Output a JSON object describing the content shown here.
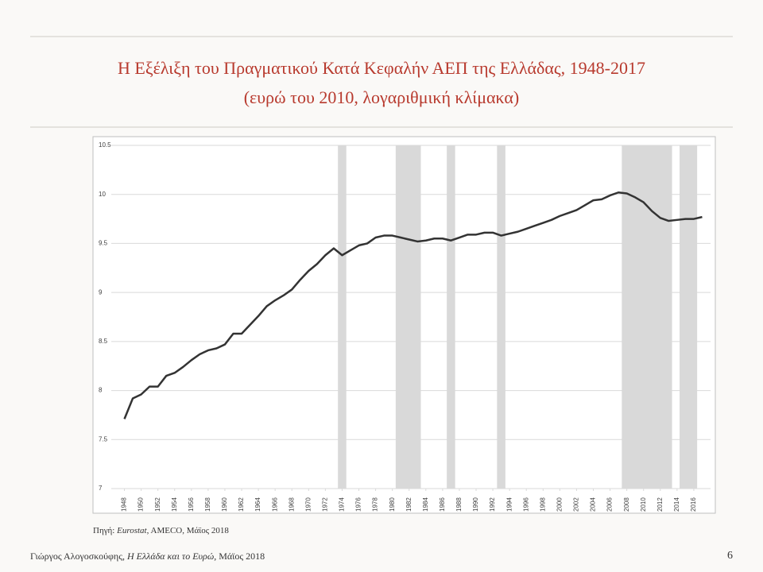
{
  "chart_data": {
    "type": "line",
    "title": "Η Εξέλιξη του Πραγματικού Κατά Κεφαλήν ΑΕΠ της Ελλάδας, 1948-2017",
    "subtitle": "(ευρώ του 2010, λογαριθμική κλίμακα)",
    "x": [
      1948,
      1949,
      1950,
      1951,
      1952,
      1953,
      1954,
      1955,
      1956,
      1957,
      1958,
      1959,
      1960,
      1961,
      1962,
      1963,
      1964,
      1965,
      1966,
      1967,
      1968,
      1969,
      1970,
      1971,
      1972,
      1973,
      1974,
      1975,
      1976,
      1977,
      1978,
      1979,
      1980,
      1981,
      1982,
      1983,
      1984,
      1985,
      1986,
      1987,
      1988,
      1989,
      1990,
      1991,
      1992,
      1993,
      1994,
      1995,
      1996,
      1997,
      1998,
      1999,
      2000,
      2001,
      2002,
      2003,
      2004,
      2005,
      2006,
      2007,
      2008,
      2009,
      2010,
      2011,
      2012,
      2013,
      2014,
      2015,
      2016,
      2017
    ],
    "series": [
      {
        "color": "#333333",
        "values": [
          7.71,
          7.92,
          7.96,
          8.04,
          8.04,
          8.15,
          8.18,
          8.24,
          8.31,
          8.37,
          8.41,
          8.43,
          8.47,
          8.58,
          8.58,
          8.67,
          8.76,
          8.86,
          8.92,
          8.97,
          9.03,
          9.13,
          9.22,
          9.29,
          9.38,
          9.45,
          9.38,
          9.43,
          9.48,
          9.5,
          9.56,
          9.58,
          9.58,
          9.56,
          9.54,
          9.52,
          9.53,
          9.55,
          9.55,
          9.53,
          9.56,
          9.59,
          9.59,
          9.61,
          9.61,
          9.58,
          9.6,
          9.62,
          9.65,
          9.68,
          9.71,
          9.74,
          9.78,
          9.81,
          9.84,
          9.89,
          9.94,
          9.95,
          9.99,
          10.02,
          10.01,
          9.97,
          9.92,
          9.83,
          9.76,
          9.73,
          9.74,
          9.75,
          9.75,
          9.77
        ]
      }
    ],
    "recessions": [
      [
        1973.5,
        1974.5
      ],
      [
        1980.4,
        1983.4
      ],
      [
        1986.5,
        1987.5
      ],
      [
        1992.5,
        1993.5
      ],
      [
        2007.4,
        2013.4
      ],
      [
        2014.3,
        2016.4
      ]
    ],
    "recession_color": "#d9d9d9",
    "xlim": [
      1947,
      2018
    ],
    "xticks": [
      1948,
      1950,
      1952,
      1954,
      1956,
      1958,
      1960,
      1962,
      1964,
      1966,
      1968,
      1970,
      1972,
      1974,
      1976,
      1978,
      1980,
      1982,
      1984,
      1986,
      1988,
      1990,
      1992,
      1994,
      1996,
      1998,
      2000,
      2002,
      2004,
      2006,
      2008,
      2010,
      2012,
      2014,
      2016
    ],
    "ylim": [
      7,
      10.5
    ],
    "yticks": [
      7,
      7.5,
      8,
      8.5,
      9,
      9.5,
      10,
      10.5
    ],
    "grid": true
  },
  "source": {
    "prefix": "Πηγή: ",
    "italic": "Eurostat",
    "rest": ", AMECO, Μάϊος 2018"
  },
  "footer": {
    "author": "Γιώργος Αλογοσκούφης, ",
    "book": "Η Ελλάδα και το Ευρώ",
    "date": ", Μάϊος 2018",
    "page_number": 6
  }
}
